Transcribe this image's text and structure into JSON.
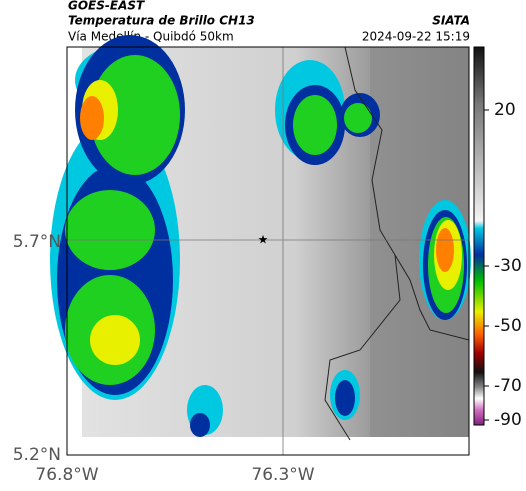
{
  "header": {
    "source": "GOES-EAST",
    "title": "Temperatura de Brillo CH13",
    "subtitle": "Vía Medellín - Quibdó 50km",
    "agency": "SIATA",
    "datetime": "2024-09-22 15:19"
  },
  "map": {
    "lat_labels": [
      "5.7°N",
      "5.2°N"
    ],
    "lon_labels": [
      "76.8°W",
      "76.3°W"
    ]
  },
  "colorbar": {
    "ticks": [
      20,
      -30,
      -50,
      -70,
      -90
    ]
  }
}
